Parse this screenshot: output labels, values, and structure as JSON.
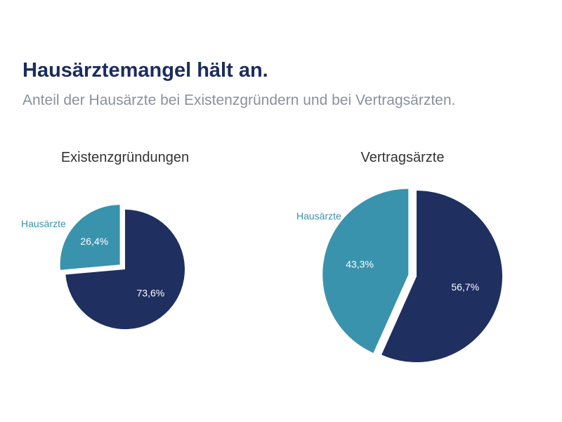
{
  "title": "Hausärztemangel hält an.",
  "subtitle": "Anteil der Hausärzte bei Existenzgründern und bei Vertragsärzten.",
  "colors": {
    "title": "#1b2c5e",
    "subtitle": "#8a909c",
    "dark_slice": "#1f2f60",
    "light_slice": "#3a93ac"
  },
  "chart_data": [
    {
      "type": "pie",
      "title": "Existenzgründungen",
      "slices": [
        {
          "name": "Hausärzte",
          "label": "26,4%",
          "value": 26.4,
          "color": "#3a93ac",
          "exploded": true,
          "outside_label": "Hausärzte"
        },
        {
          "name": "",
          "label": "73,6%",
          "value": 73.6,
          "color": "#1f2f60",
          "exploded": false,
          "outside_label": ""
        }
      ]
    },
    {
      "type": "pie",
      "title": "Vertragsärzte",
      "slices": [
        {
          "name": "Hausärzte",
          "label": "43,3%",
          "value": 43.3,
          "color": "#3a93ac",
          "exploded": true,
          "outside_label": "Hausärzte"
        },
        {
          "name": "",
          "label": "56,7%",
          "value": 56.7,
          "color": "#1f2f60",
          "exploded": false,
          "outside_label": ""
        }
      ]
    }
  ]
}
